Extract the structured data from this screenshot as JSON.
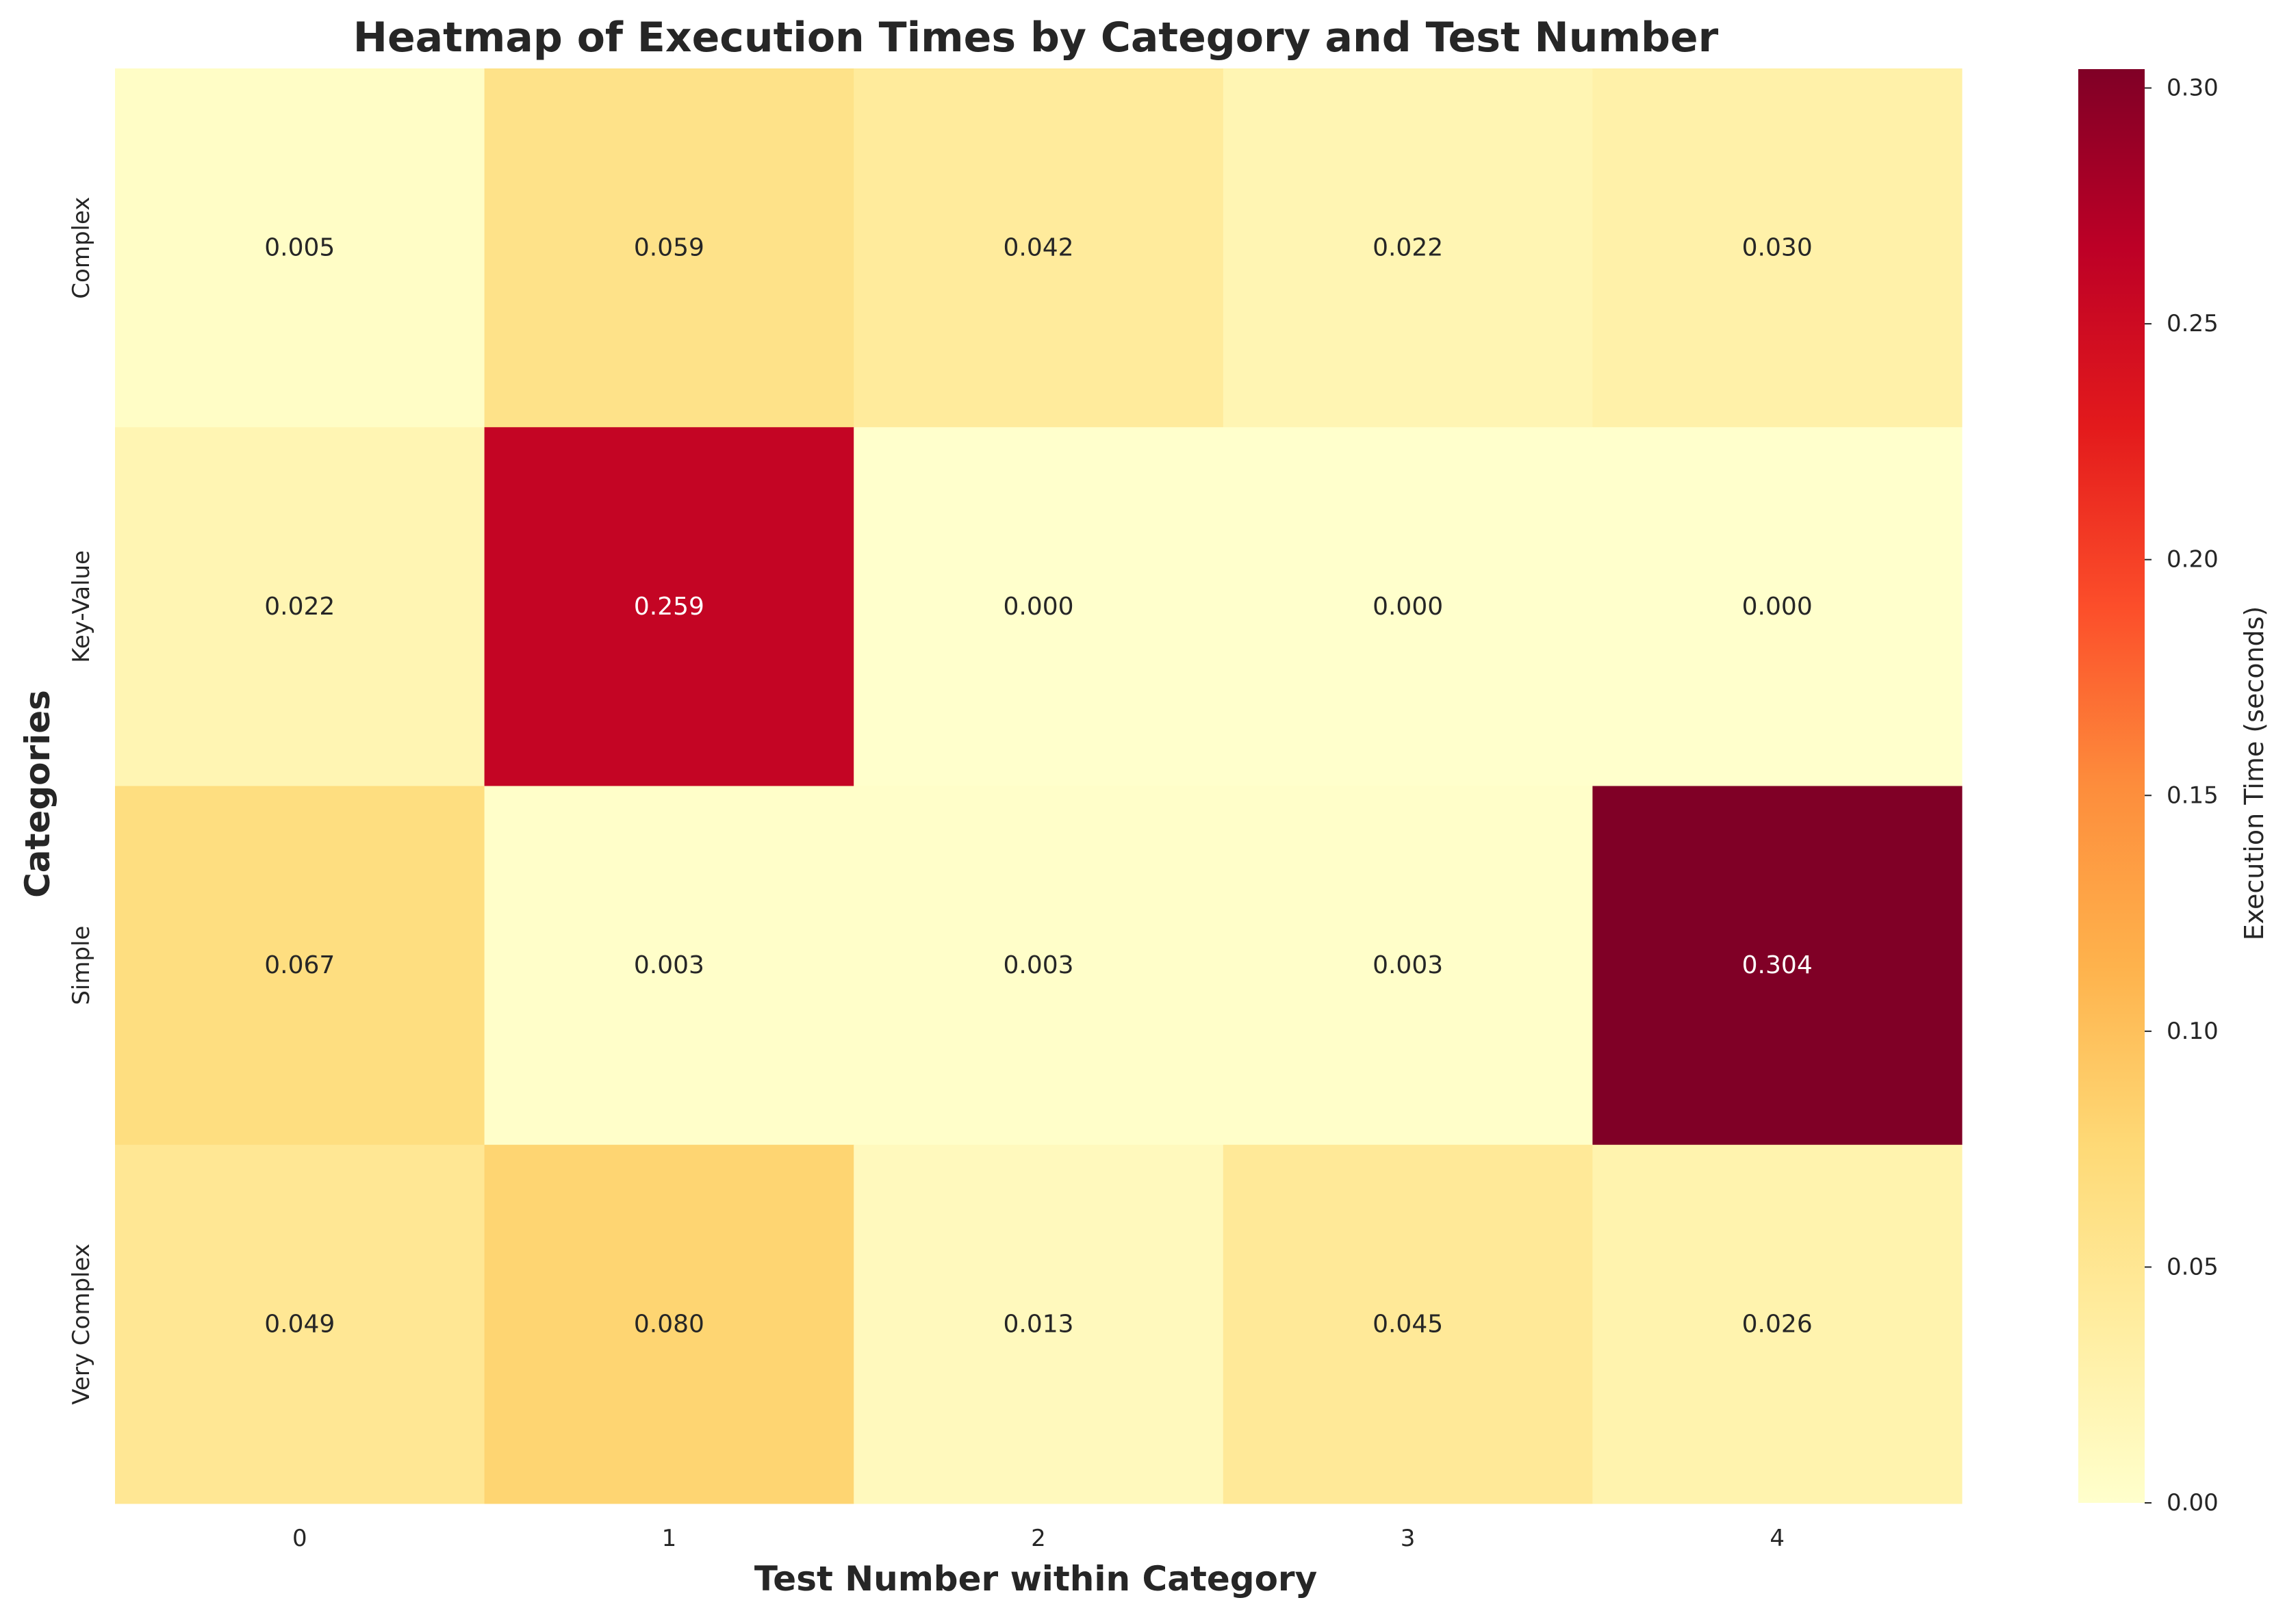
{
  "chart_data": {
    "type": "heatmap",
    "title": "Heatmap of Execution Times by Category and Test Number",
    "xlabel": "Test Number within Category",
    "ylabel": "Categories",
    "x_categories": [
      "0",
      "1",
      "2",
      "3",
      "4"
    ],
    "y_categories": [
      "Complex",
      "Key-Value",
      "Simple",
      "Very Complex"
    ],
    "values": [
      [
        0.005,
        0.059,
        0.042,
        0.022,
        0.03
      ],
      [
        0.022,
        0.259,
        0.0,
        0.0,
        0.0
      ],
      [
        0.067,
        0.003,
        0.003,
        0.003,
        0.304
      ],
      [
        0.049,
        0.08,
        0.013,
        0.045,
        0.026
      ]
    ],
    "value_labels": [
      [
        "0.005",
        "0.059",
        "0.042",
        "0.022",
        "0.030"
      ],
      [
        "0.022",
        "0.259",
        "0.000",
        "0.000",
        "0.000"
      ],
      [
        "0.067",
        "0.003",
        "0.003",
        "0.003",
        "0.304"
      ],
      [
        "0.049",
        "0.080",
        "0.013",
        "0.045",
        "0.026"
      ]
    ],
    "colormap": "YlOrRd",
    "colorbar": {
      "label": "Execution Time (seconds)",
      "vmin": 0.0,
      "vmax": 0.304,
      "ticks": [
        0.0,
        0.05,
        0.1,
        0.15,
        0.2,
        0.25,
        0.3
      ],
      "tick_labels": [
        "0.00",
        "0.05",
        "0.10",
        "0.15",
        "0.20",
        "0.25",
        "0.30"
      ]
    },
    "grid": false
  }
}
